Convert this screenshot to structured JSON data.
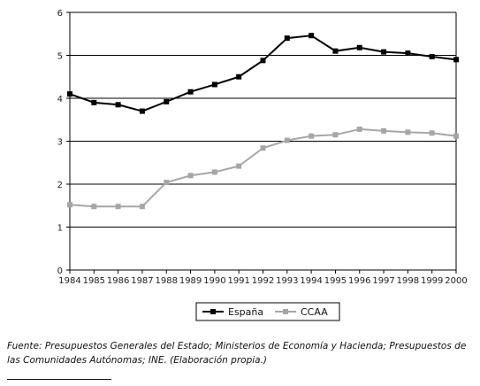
{
  "chart_data": {
    "type": "line",
    "title": "",
    "xlabel": "",
    "ylabel": "",
    "x": [
      "1984",
      "1985",
      "1986",
      "1987",
      "1988",
      "1989",
      "1990",
      "1991",
      "1992",
      "1993",
      "1994",
      "1995",
      "1996",
      "1997",
      "1998",
      "1999",
      "2000"
    ],
    "ylim": [
      0,
      6
    ],
    "yticks": [
      "0",
      "1",
      "2",
      "3",
      "4",
      "5",
      "6"
    ],
    "grid": "horizontal",
    "legend_position": "bottom-center",
    "series": [
      {
        "name": "España",
        "color": "#000000",
        "marker": "square",
        "values": [
          4.1,
          3.9,
          3.85,
          3.7,
          3.92,
          4.15,
          4.32,
          4.5,
          4.88,
          5.4,
          5.46,
          5.1,
          5.18,
          5.08,
          5.05,
          4.97,
          4.9
        ]
      },
      {
        "name": "CCAA",
        "color": "#a6a6a6",
        "marker": "square",
        "values": [
          1.52,
          1.48,
          1.48,
          1.48,
          2.04,
          2.2,
          2.28,
          2.42,
          2.84,
          3.02,
          3.12,
          3.15,
          3.28,
          3.24,
          3.21,
          3.19,
          3.12
        ]
      }
    ]
  },
  "source_note": "Fuente: Presupuestos Generales del Estado; Ministerios de Economía y Hacienda; Presupuestos de las Comunidades Autónomas; INE. (Elaboración propia.)"
}
